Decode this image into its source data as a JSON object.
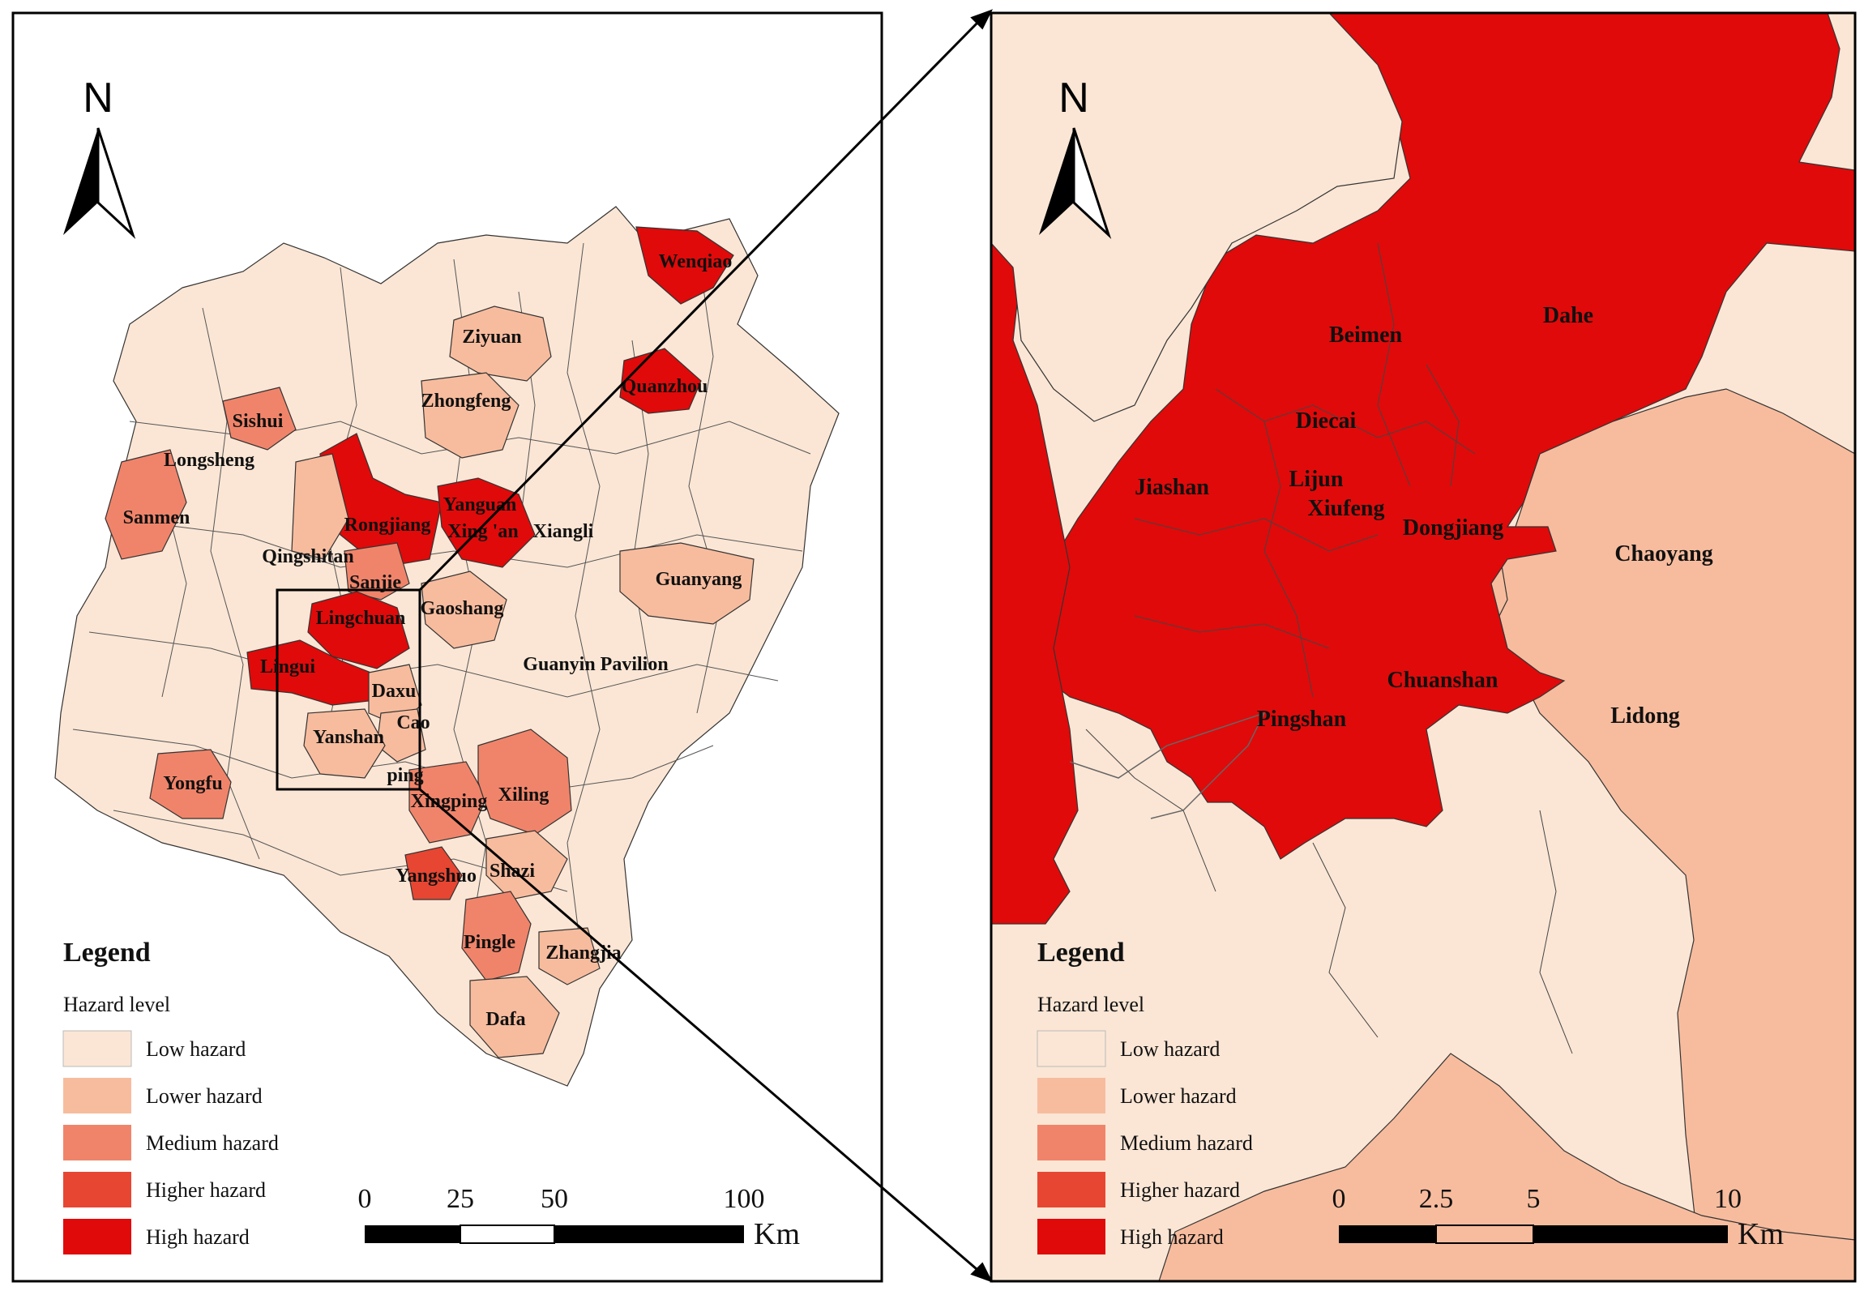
{
  "colors": {
    "low": "#fbe6d5",
    "lower": "#f7bc9e",
    "medium": "#f0846a",
    "higher": "#e74632",
    "high": "#e10a0a"
  },
  "left_map": {
    "north_label": "N",
    "legend": {
      "title": "Legend",
      "subtitle": "Hazard level",
      "items": [
        {
          "label": "Low hazard",
          "level": "low"
        },
        {
          "label": "Lower hazard",
          "level": "lower"
        },
        {
          "label": "Medium hazard",
          "level": "medium"
        },
        {
          "label": "Higher hazard",
          "level": "higher"
        },
        {
          "label": "High hazard",
          "level": "high"
        }
      ]
    },
    "scale": {
      "ticks": [
        "0",
        "25",
        "50",
        "100"
      ],
      "unit": "Km"
    },
    "places": [
      {
        "name": "Wenqiao",
        "level": "high"
      },
      {
        "name": "Ziyuan",
        "level": "lower"
      },
      {
        "name": "Quanzhou",
        "level": "high"
      },
      {
        "name": "Zhongfeng",
        "level": "lower"
      },
      {
        "name": "Sishui",
        "level": "medium"
      },
      {
        "name": "Longsheng",
        "level": "low"
      },
      {
        "name": "Sanmen",
        "level": "medium"
      },
      {
        "name": "Yanguan",
        "level": "high"
      },
      {
        "name": "Rongjiang",
        "level": "high"
      },
      {
        "name": "Xing 'an",
        "level": "high"
      },
      {
        "name": "Xiangli",
        "level": "low"
      },
      {
        "name": "Qingshitan",
        "level": "lower"
      },
      {
        "name": "Sanjie",
        "level": "medium"
      },
      {
        "name": "Guanyang",
        "level": "lower"
      },
      {
        "name": "Gaoshang",
        "level": "lower"
      },
      {
        "name": "Lingchuan",
        "level": "high"
      },
      {
        "name": "Lingui",
        "level": "high"
      },
      {
        "name": "Guanyin Pavilion",
        "level": "low"
      },
      {
        "name": "Daxu",
        "level": "lower"
      },
      {
        "name": "Cao",
        "level": "lower"
      },
      {
        "name": "Yanshan",
        "level": "lower"
      },
      {
        "name": "ping",
        "level": "lower"
      },
      {
        "name": "Yongfu",
        "level": "medium"
      },
      {
        "name": "Xingping",
        "level": "medium"
      },
      {
        "name": "Xiling",
        "level": "medium"
      },
      {
        "name": "Yangshuo",
        "level": "higher"
      },
      {
        "name": "Shazi",
        "level": "lower"
      },
      {
        "name": "Pingle",
        "level": "medium"
      },
      {
        "name": "Zhangjia",
        "level": "lower"
      },
      {
        "name": "Dafa",
        "level": "lower"
      }
    ]
  },
  "right_map": {
    "north_label": "N",
    "legend": {
      "title": "Legend",
      "subtitle": "Hazard level",
      "items": [
        {
          "label": "Low hazard",
          "level": "low"
        },
        {
          "label": "Lower hazard",
          "level": "lower"
        },
        {
          "label": "Medium hazard",
          "level": "medium"
        },
        {
          "label": "Higher hazard",
          "level": "higher"
        },
        {
          "label": "High hazard",
          "level": "high"
        }
      ]
    },
    "scale": {
      "ticks": [
        "0",
        "2.5",
        "5",
        "10"
      ],
      "unit": "Km"
    },
    "places": [
      {
        "name": "Dahe",
        "level": "high"
      },
      {
        "name": "Beimen",
        "level": "high"
      },
      {
        "name": "Diecai",
        "level": "high"
      },
      {
        "name": "Jiashan",
        "level": "high"
      },
      {
        "name": "Lijun",
        "level": "high"
      },
      {
        "name": "Xiufeng",
        "level": "high"
      },
      {
        "name": "Dongjiang",
        "level": "high"
      },
      {
        "name": "Chaoyang",
        "level": "lower"
      },
      {
        "name": "Chuanshan",
        "level": "high"
      },
      {
        "name": "Pingshan",
        "level": "high"
      },
      {
        "name": "Lidong",
        "level": "lower"
      }
    ]
  }
}
